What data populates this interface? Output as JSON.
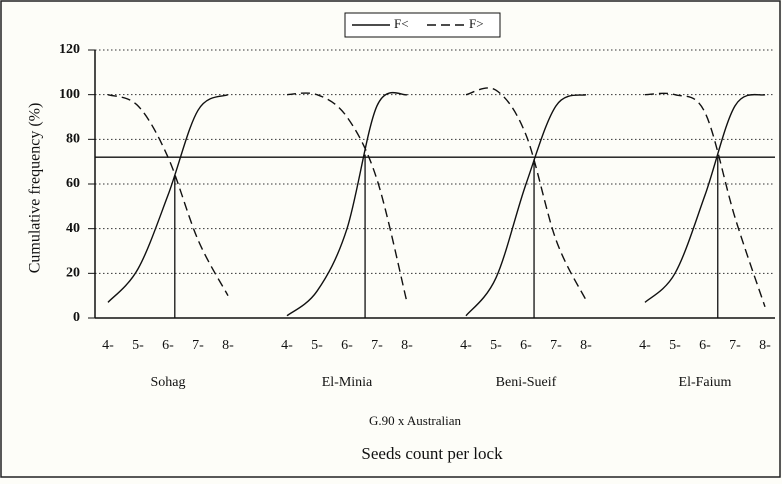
{
  "chart_data": {
    "type": "line",
    "y_label": "Cumulative frequency (%)",
    "x_label": "Seeds count per lock",
    "subtitle": "G.90 x Australian",
    "groups": [
      "Sohag",
      "El-Minia",
      "Beni-Sueif",
      "El-Faium"
    ],
    "categories": [
      "4-",
      "5-",
      "6-",
      "7-",
      "8-",
      "4-",
      "5-",
      "6-",
      "7-",
      "8-",
      "4-",
      "5-",
      "6-",
      "7-",
      "8-",
      "4-",
      "5-",
      "6-",
      "7-",
      "8-"
    ],
    "series": [
      {
        "name": "F<",
        "color": "#111111",
        "dashed": false,
        "values": [
          7,
          22,
          55,
          93,
          100,
          1,
          12,
          40,
          95,
          100,
          1,
          18,
          60,
          95,
          100,
          7,
          20,
          55,
          95,
          100
        ]
      },
      {
        "name": "F>",
        "color": "#111111",
        "dashed": true,
        "values": [
          100,
          95,
          72,
          35,
          10,
          100,
          100,
          90,
          62,
          7,
          100,
          102,
          82,
          35,
          8,
          100,
          100,
          92,
          45,
          5
        ]
      }
    ],
    "reference_line": 72,
    "ylim": [
      0,
      120
    ],
    "yticks": [
      0,
      20,
      40,
      60,
      80,
      100,
      120
    ],
    "grid": true,
    "legend": "top"
  }
}
